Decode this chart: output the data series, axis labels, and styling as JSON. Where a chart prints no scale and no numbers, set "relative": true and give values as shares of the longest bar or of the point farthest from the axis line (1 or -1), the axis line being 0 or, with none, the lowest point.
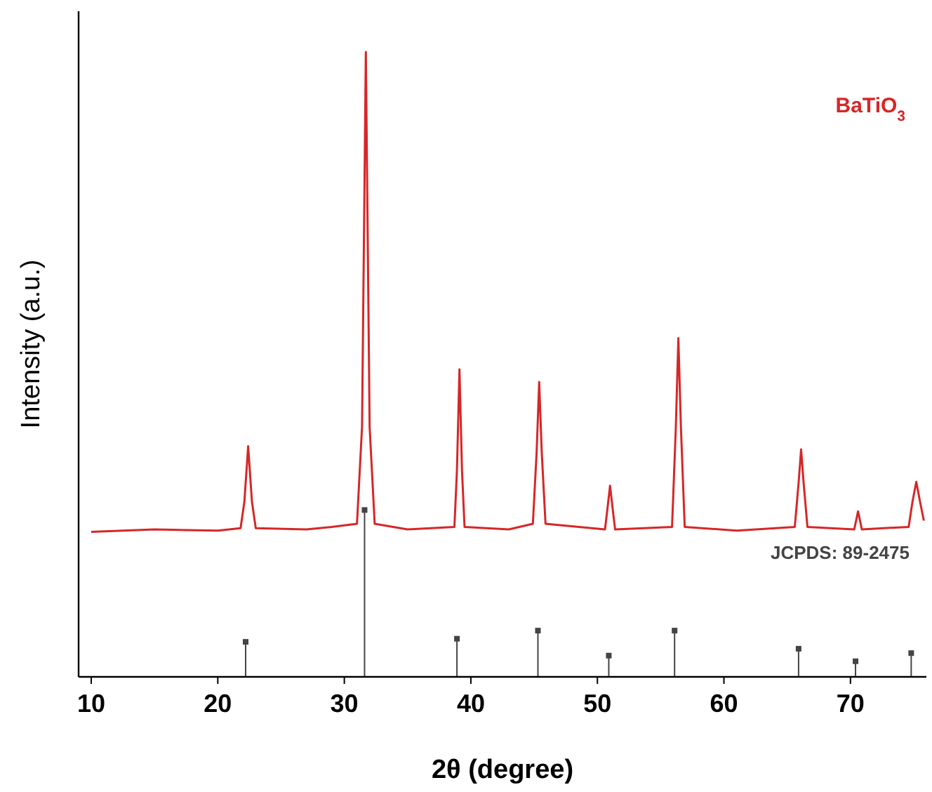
{
  "chart_data": {
    "type": "line",
    "relative": true,
    "xlabel": "2θ (degree)",
    "ylabel": "Intensity (a.u.)",
    "xlim": [
      9,
      76
    ],
    "xticks": [
      10,
      20,
      30,
      40,
      50,
      60,
      70
    ],
    "tick_labels": "x",
    "series": [
      {
        "name": "BaTiO$_{3}$",
        "color": "#d62728",
        "x": [
          10,
          15,
          20,
          21.8,
          22.1,
          22.4,
          22.7,
          23,
          27,
          29,
          31,
          31.4,
          31.7,
          32,
          32.4,
          35,
          38.7,
          38.9,
          39.1,
          39.3,
          39.5,
          43,
          44.9,
          45.2,
          45.4,
          45.6,
          45.9,
          50.6,
          50.8,
          51,
          51.2,
          51.4,
          55.9,
          56.2,
          56.4,
          56.6,
          56.9,
          61,
          65.6,
          65.9,
          66.1,
          66.3,
          66.6,
          70.3,
          70.6,
          70.9,
          74.6,
          74.9,
          75.2,
          75.5,
          75.8
        ],
        "values": [
          0.232,
          0.236,
          0.234,
          0.238,
          0.28,
          0.369,
          0.28,
          0.238,
          0.236,
          0.24,
          0.245,
          0.4,
          1,
          0.4,
          0.245,
          0.236,
          0.24,
          0.33,
          0.492,
          0.33,
          0.24,
          0.236,
          0.245,
          0.36,
          0.472,
          0.36,
          0.245,
          0.236,
          0.27,
          0.306,
          0.27,
          0.236,
          0.24,
          0.4,
          0.542,
          0.4,
          0.24,
          0.234,
          0.24,
          0.31,
          0.364,
          0.31,
          0.24,
          0.236,
          0.265,
          0.236,
          0.24,
          0.28,
          0.312,
          0.28,
          0.25
        ]
      },
      {
        "name": "JCPDS: 89-2475",
        "type": "lollipop",
        "color": "#444444",
        "marker": "square",
        "x": [
          22.2,
          31.6,
          38.9,
          45.3,
          50.9,
          56.1,
          65.9,
          70.4,
          74.8
        ],
        "values": [
          0.056,
          0.267,
          0.061,
          0.074,
          0.034,
          0.074,
          0.045,
          0.025,
          0.038
        ]
      }
    ]
  }
}
